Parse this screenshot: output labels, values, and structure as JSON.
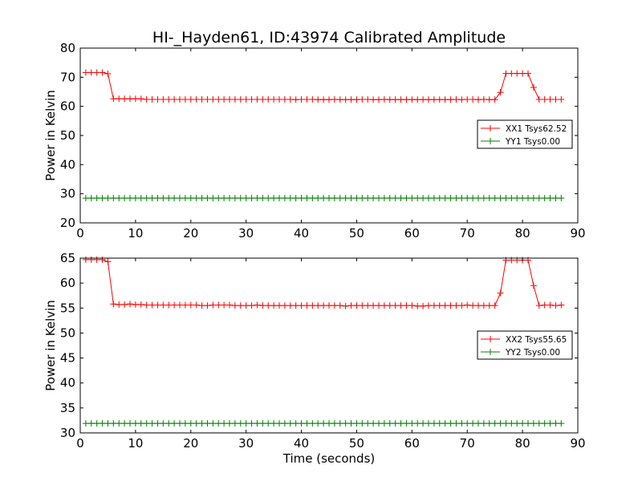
{
  "figure_title": "HI-_Hayden61, ID:43974 Calibrated Amplitude",
  "colors": {
    "xx": "#ff0000",
    "yy": "#008000"
  },
  "chart_data": [
    {
      "type": "line",
      "title": "HI-_Hayden61, ID:43974 Calibrated Amplitude",
      "xlabel": "",
      "ylabel": "Power in Kelvin",
      "xlim": [
        0,
        90
      ],
      "ylim": [
        20,
        80
      ],
      "xticks": [
        0,
        10,
        20,
        30,
        40,
        50,
        60,
        70,
        80,
        90
      ],
      "yticks": [
        20,
        30,
        40,
        50,
        60,
        70,
        80
      ],
      "grid": false,
      "legend_position": "center-right",
      "x": [
        1,
        2,
        3,
        4,
        5,
        6,
        7,
        8,
        9,
        10,
        11,
        12,
        13,
        14,
        15,
        16,
        17,
        18,
        19,
        20,
        21,
        22,
        23,
        24,
        25,
        26,
        27,
        28,
        29,
        30,
        31,
        32,
        33,
        34,
        35,
        36,
        37,
        38,
        39,
        40,
        41,
        42,
        43,
        44,
        45,
        46,
        47,
        48,
        49,
        50,
        51,
        52,
        53,
        54,
        55,
        56,
        57,
        58,
        59,
        60,
        61,
        62,
        63,
        64,
        65,
        66,
        67,
        68,
        69,
        70,
        71,
        72,
        73,
        74,
        75,
        76,
        77,
        78,
        79,
        80,
        81,
        82,
        83,
        84,
        85,
        86,
        87
      ],
      "series": [
        {
          "name": "XX1 Tsys62.52",
          "color": "#ff0000",
          "values": [
            71.6,
            71.6,
            71.6,
            71.6,
            71.2,
            62.6,
            62.6,
            62.6,
            62.6,
            62.6,
            62.6,
            62.4,
            62.4,
            62.4,
            62.4,
            62.4,
            62.4,
            62.4,
            62.4,
            62.4,
            62.4,
            62.4,
            62.4,
            62.4,
            62.4,
            62.4,
            62.4,
            62.4,
            62.4,
            62.4,
            62.4,
            62.4,
            62.4,
            62.4,
            62.4,
            62.4,
            62.4,
            62.4,
            62.3,
            62.4,
            62.4,
            62.4,
            62.3,
            62.3,
            62.3,
            62.4,
            62.3,
            62.3,
            62.3,
            62.3,
            62.4,
            62.4,
            62.3,
            62.3,
            62.4,
            62.3,
            62.3,
            62.3,
            62.3,
            62.3,
            62.3,
            62.3,
            62.3,
            62.3,
            62.3,
            62.3,
            62.3,
            62.4,
            62.3,
            62.4,
            62.4,
            62.3,
            62.4,
            62.3,
            62.3,
            64.8,
            71.3,
            71.3,
            71.3,
            71.3,
            71.3,
            66.5,
            62.4,
            62.4,
            62.4,
            62.4,
            62.4
          ]
        },
        {
          "name": "YY1 Tsys0.00",
          "color": "#008000",
          "values": [
            28.5,
            28.5,
            28.5,
            28.5,
            28.5,
            28.5,
            28.5,
            28.5,
            28.5,
            28.5,
            28.5,
            28.5,
            28.5,
            28.5,
            28.5,
            28.5,
            28.5,
            28.5,
            28.5,
            28.5,
            28.5,
            28.5,
            28.5,
            28.5,
            28.5,
            28.5,
            28.5,
            28.5,
            28.5,
            28.5,
            28.5,
            28.5,
            28.5,
            28.5,
            28.5,
            28.5,
            28.5,
            28.5,
            28.5,
            28.5,
            28.5,
            28.5,
            28.5,
            28.5,
            28.5,
            28.5,
            28.5,
            28.5,
            28.5,
            28.5,
            28.5,
            28.5,
            28.5,
            28.5,
            28.5,
            28.5,
            28.5,
            28.5,
            28.5,
            28.5,
            28.5,
            28.5,
            28.5,
            28.5,
            28.5,
            28.5,
            28.5,
            28.5,
            28.5,
            28.5,
            28.5,
            28.5,
            28.5,
            28.5,
            28.5,
            28.5,
            28.5,
            28.5,
            28.5,
            28.5,
            28.5,
            28.5,
            28.5,
            28.5,
            28.5,
            28.5,
            28.5
          ]
        }
      ]
    },
    {
      "type": "line",
      "title": "",
      "xlabel": "Time (seconds)",
      "ylabel": "Power in Kelvin",
      "xlim": [
        0,
        90
      ],
      "ylim": [
        30,
        65
      ],
      "xticks": [
        0,
        10,
        20,
        30,
        40,
        50,
        60,
        70,
        80,
        90
      ],
      "yticks": [
        30,
        35,
        40,
        45,
        50,
        55,
        60,
        65
      ],
      "grid": false,
      "legend_position": "center-right",
      "x": [
        1,
        2,
        3,
        4,
        5,
        6,
        7,
        8,
        9,
        10,
        11,
        12,
        13,
        14,
        15,
        16,
        17,
        18,
        19,
        20,
        21,
        22,
        23,
        24,
        25,
        26,
        27,
        28,
        29,
        30,
        31,
        32,
        33,
        34,
        35,
        36,
        37,
        38,
        39,
        40,
        41,
        42,
        43,
        44,
        45,
        46,
        47,
        48,
        49,
        50,
        51,
        52,
        53,
        54,
        55,
        56,
        57,
        58,
        59,
        60,
        61,
        62,
        63,
        64,
        65,
        66,
        67,
        68,
        69,
        70,
        71,
        72,
        73,
        74,
        75,
        76,
        77,
        78,
        79,
        80,
        81,
        82,
        83,
        84,
        85,
        86,
        87
      ],
      "series": [
        {
          "name": "XX2 Tsys55.65",
          "color": "#ff0000",
          "values": [
            64.7,
            64.7,
            64.7,
            64.7,
            64.3,
            55.8,
            55.7,
            55.7,
            55.8,
            55.7,
            55.7,
            55.6,
            55.6,
            55.6,
            55.6,
            55.6,
            55.6,
            55.6,
            55.6,
            55.6,
            55.6,
            55.5,
            55.5,
            55.6,
            55.6,
            55.6,
            55.6,
            55.5,
            55.5,
            55.5,
            55.5,
            55.6,
            55.5,
            55.5,
            55.5,
            55.5,
            55.5,
            55.5,
            55.5,
            55.5,
            55.5,
            55.5,
            55.5,
            55.5,
            55.5,
            55.5,
            55.5,
            55.4,
            55.5,
            55.5,
            55.5,
            55.5,
            55.5,
            55.5,
            55.5,
            55.5,
            55.5,
            55.5,
            55.5,
            55.5,
            55.4,
            55.4,
            55.5,
            55.5,
            55.5,
            55.5,
            55.5,
            55.5,
            55.5,
            55.6,
            55.5,
            55.5,
            55.5,
            55.5,
            55.5,
            58.0,
            64.6,
            64.6,
            64.6,
            64.6,
            64.6,
            59.5,
            55.5,
            55.6,
            55.6,
            55.5,
            55.6
          ]
        },
        {
          "name": "YY2 Tsys0.00",
          "color": "#008000",
          "values": [
            31.9,
            31.9,
            31.9,
            31.9,
            31.9,
            31.9,
            31.9,
            31.9,
            31.9,
            31.9,
            31.9,
            31.9,
            31.9,
            31.9,
            31.9,
            31.9,
            31.9,
            31.9,
            31.9,
            31.9,
            31.9,
            31.9,
            31.9,
            31.9,
            31.9,
            31.9,
            31.9,
            31.9,
            31.9,
            31.9,
            31.9,
            31.9,
            31.9,
            31.9,
            31.9,
            31.9,
            31.9,
            31.9,
            31.9,
            31.9,
            31.9,
            31.9,
            31.9,
            31.9,
            31.9,
            31.9,
            31.9,
            31.9,
            31.9,
            31.9,
            31.9,
            31.9,
            31.9,
            31.9,
            31.9,
            31.9,
            31.9,
            31.9,
            31.9,
            31.9,
            31.9,
            31.9,
            31.9,
            31.9,
            31.9,
            31.9,
            31.9,
            31.9,
            31.9,
            31.9,
            31.9,
            31.9,
            31.9,
            31.9,
            31.9,
            31.9,
            31.9,
            31.9,
            31.9,
            31.9,
            31.9,
            31.9,
            31.9,
            31.9,
            31.9,
            31.9,
            31.9
          ]
        }
      ]
    }
  ]
}
